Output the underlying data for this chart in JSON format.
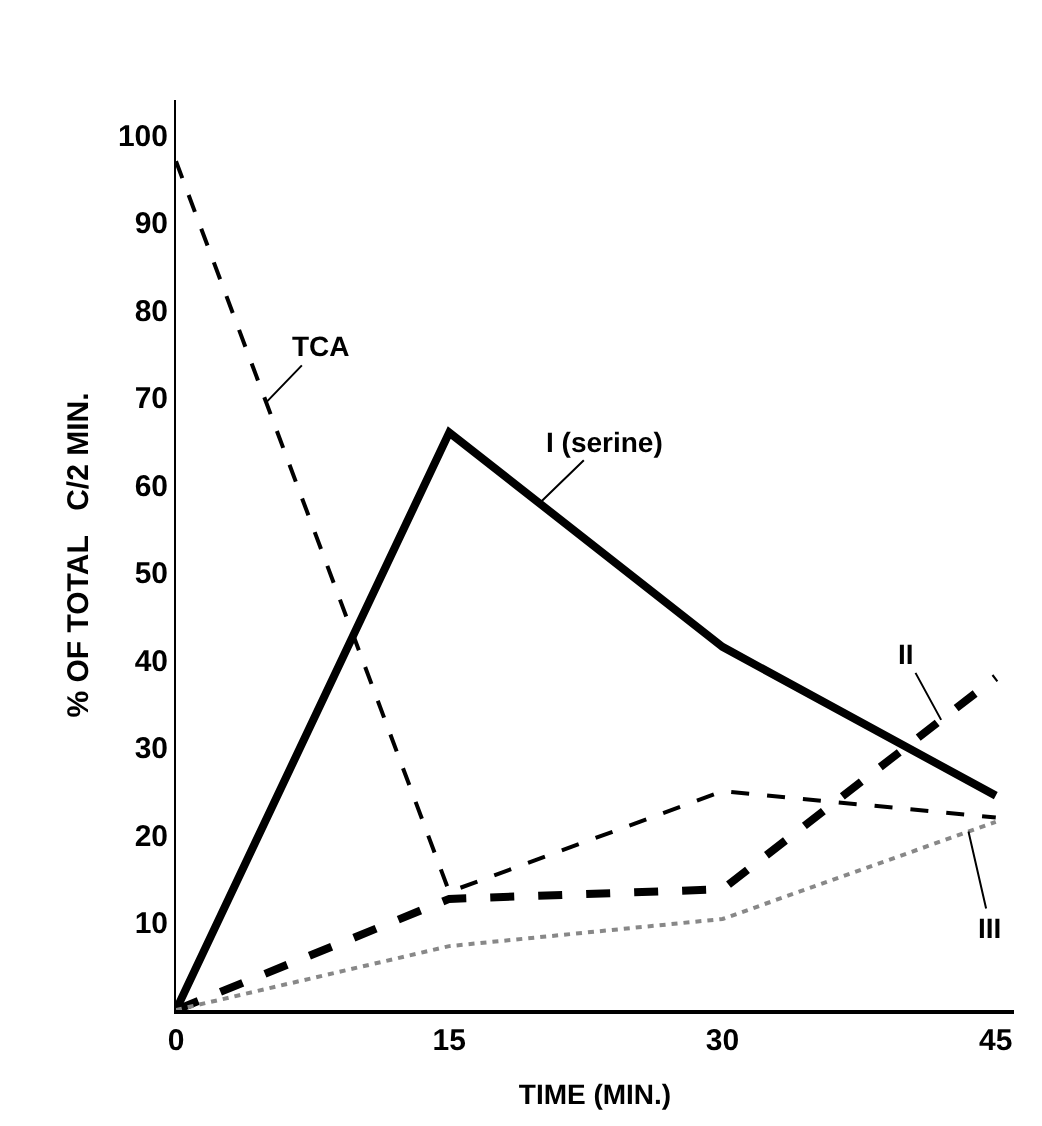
{
  "chart_data": {
    "type": "line",
    "xlabel": "TIME (MIN.)",
    "ylabel": "% OF TOTAL   C/2 MIN.",
    "x": [
      0,
      15,
      30,
      45
    ],
    "series": [
      {
        "name": "TCA",
        "color": "#000000",
        "line_style": "dashed",
        "values": [
          97,
          13.5,
          25,
          22
        ]
      },
      {
        "name": "I (serine)",
        "color": "#000000",
        "line_style": "solid",
        "values": [
          0,
          66,
          41.5,
          24.5
        ]
      },
      {
        "name": "II",
        "color": "#000000",
        "line_style": "dashed",
        "values": [
          0,
          12.7,
          13.8,
          38
        ]
      },
      {
        "name": "III",
        "color": "#888888",
        "line_style": "dotted",
        "values": [
          0,
          7.3,
          10.4,
          21.5
        ]
      }
    ],
    "xlim": [
      0,
      46
    ],
    "xticks": [
      0,
      15,
      30,
      45
    ],
    "ylim": [
      0,
      104
    ],
    "yticks": [
      10,
      20,
      30,
      40,
      50,
      60,
      70,
      80,
      90,
      100
    ],
    "grid": false,
    "legend": false,
    "marker": "none"
  }
}
